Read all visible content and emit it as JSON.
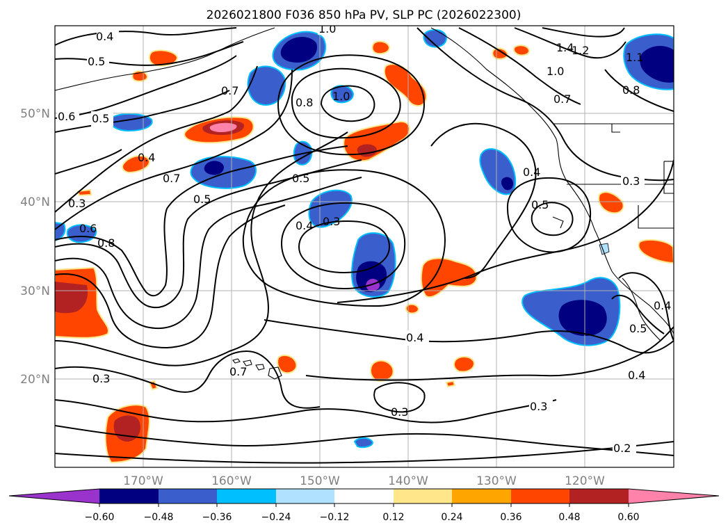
{
  "title": "2026021800 F036 850 hPa PV, SLP PC (2026022300)",
  "map": {
    "lat_labels": [
      "50°N",
      "40°N",
      "30°N",
      "20°N"
    ],
    "lon_labels": [
      "170°W",
      "160°W",
      "150°W",
      "140°W",
      "130°W",
      "120°W"
    ],
    "contour_labels": [
      "0.4",
      "0.5",
      "0.6",
      "0.5",
      "0.4",
      "0.7",
      "0.3",
      "0.6",
      "0.8",
      "0.5",
      "0.7",
      "0.8",
      "1.0",
      "1.0",
      "0.5",
      "0.4",
      "0.3",
      "0.4",
      "0.5",
      "0.4",
      "1.4",
      "1.2",
      "1.0",
      "0.7",
      "0.8",
      "1.1",
      "0.3",
      "0.3",
      "0.7",
      "0.3",
      "0.4",
      "0.3",
      "0.2",
      "0.4",
      "0.5"
    ]
  },
  "colorbar": {
    "ticks": [
      "−0.60",
      "−0.48",
      "−0.36",
      "−0.24",
      "−0.12",
      "0.12",
      "0.24",
      "0.36",
      "0.48",
      "0.60"
    ],
    "colors": [
      "#9933cc",
      "#000080",
      "#3a5fcd",
      "#00bfff",
      "#b0e2ff",
      "#ffffff",
      "#ffe68a",
      "#ffa500",
      "#ff4500",
      "#b22222",
      "#ff82ab"
    ]
  }
}
